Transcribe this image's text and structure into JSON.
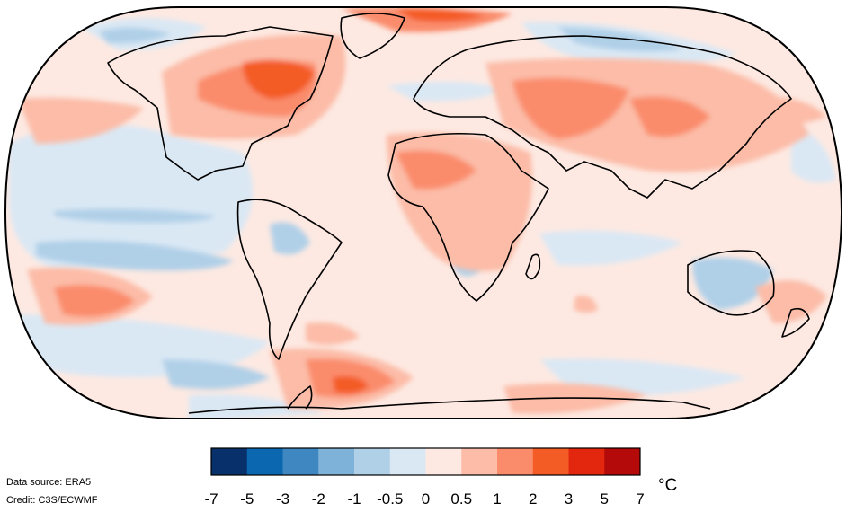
{
  "map": {
    "projection": "Robinson",
    "variable": "surface air temperature anomaly",
    "land_outline_color": "#000000",
    "ocean_background_color": "#fde9e2"
  },
  "colorbar": {
    "unit": "°C",
    "tick_labels": [
      "-7",
      "-5",
      "-3",
      "-2",
      "-1",
      "-0.5",
      "0",
      "0.5",
      "1",
      "2",
      "3",
      "5",
      "7"
    ],
    "bins": [
      {
        "from": -7,
        "to": -5,
        "color": "#08306b"
      },
      {
        "from": -5,
        "to": -3,
        "color": "#0b68b0"
      },
      {
        "from": -3,
        "to": -2,
        "color": "#3f87c0"
      },
      {
        "from": -2,
        "to": -1,
        "color": "#7eb2d8"
      },
      {
        "from": -1,
        "to": -0.5,
        "color": "#b0d0e8"
      },
      {
        "from": -0.5,
        "to": 0,
        "color": "#dae8f4"
      },
      {
        "from": 0,
        "to": 0.5,
        "color": "#fde9e2"
      },
      {
        "from": 0.5,
        "to": 1,
        "color": "#fcbca7"
      },
      {
        "from": 1,
        "to": 2,
        "color": "#fa8c6c"
      },
      {
        "from": 2,
        "to": 3,
        "color": "#f45c25"
      },
      {
        "from": 3,
        "to": 5,
        "color": "#e2270e"
      },
      {
        "from": 5,
        "to": 7,
        "color": "#b40a0a"
      }
    ]
  },
  "credits": {
    "source": "Data source: ERA5",
    "credit": "Credit: C3S/ECWMF"
  }
}
